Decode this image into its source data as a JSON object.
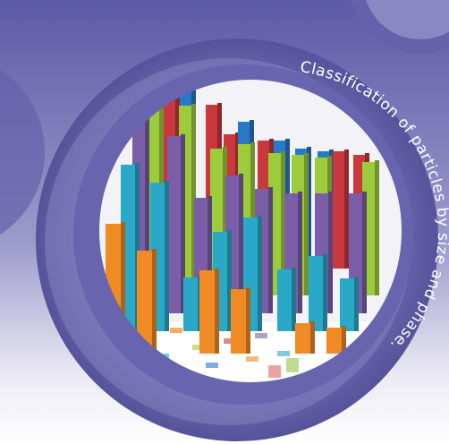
{
  "caption": "Classification of particles by size and phase."
}
